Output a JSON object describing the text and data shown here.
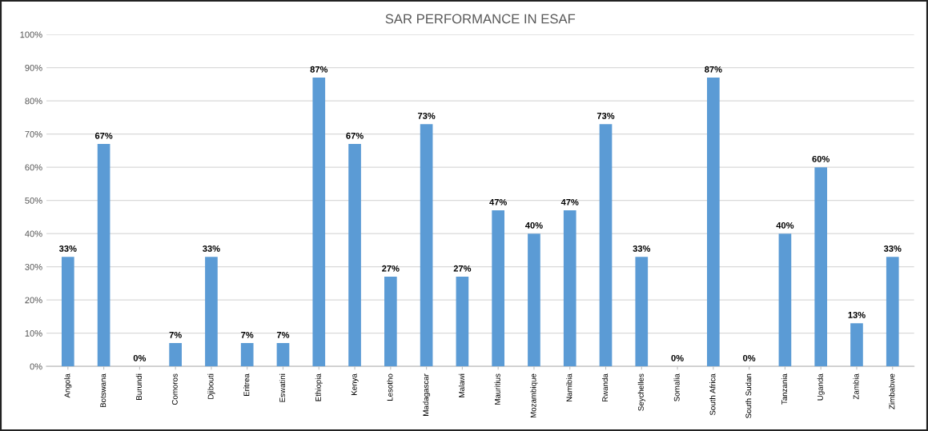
{
  "chart_data": {
    "type": "bar",
    "title": "SAR PERFORMANCE IN ESAF",
    "categories": [
      "Angola",
      "Botswana",
      "Burundi",
      "Comoros",
      "Djibouti",
      "Eritrea",
      "Eswatini",
      "Ethiopia",
      "Kenya",
      "Lesotho",
      "Madagascar",
      "Malawi",
      "Mauritius",
      "Mozambique",
      "Namibia",
      "Rwanda",
      "Seychelles",
      "Somalia",
      "South Africa",
      "South Sudan",
      "Tanzania",
      "Uganda",
      "Zambia",
      "Zimbabwe"
    ],
    "values": [
      33,
      67,
      0,
      7,
      33,
      7,
      7,
      87,
      67,
      27,
      73,
      27,
      47,
      40,
      47,
      73,
      33,
      0,
      87,
      0,
      40,
      60,
      13,
      33
    ],
    "value_labels": [
      "33%",
      "67%",
      "0%",
      "7%",
      "33%",
      "7%",
      "7%",
      "87%",
      "67%",
      "27%",
      "73%",
      "27%",
      "47%",
      "40%",
      "47%",
      "73%",
      "33%",
      "0%",
      "87%",
      "0%",
      "40%",
      "60%",
      "13%",
      "33%"
    ],
    "color": "#5b9bd5",
    "ylim": [
      0,
      100
    ],
    "yticks": [
      {
        "value": 0,
        "label": "0%"
      },
      {
        "value": 10,
        "label": "10%"
      },
      {
        "value": 20,
        "label": "20%"
      },
      {
        "value": 30,
        "label": "30%"
      },
      {
        "value": 40,
        "label": "40%"
      },
      {
        "value": 50,
        "label": "50%"
      },
      {
        "value": 60,
        "label": "60%"
      },
      {
        "value": 70,
        "label": "70%"
      },
      {
        "value": 80,
        "label": "80%"
      },
      {
        "value": 90,
        "label": "90%"
      },
      {
        "value": 100,
        "label": "100%"
      }
    ],
    "grid": "y"
  }
}
